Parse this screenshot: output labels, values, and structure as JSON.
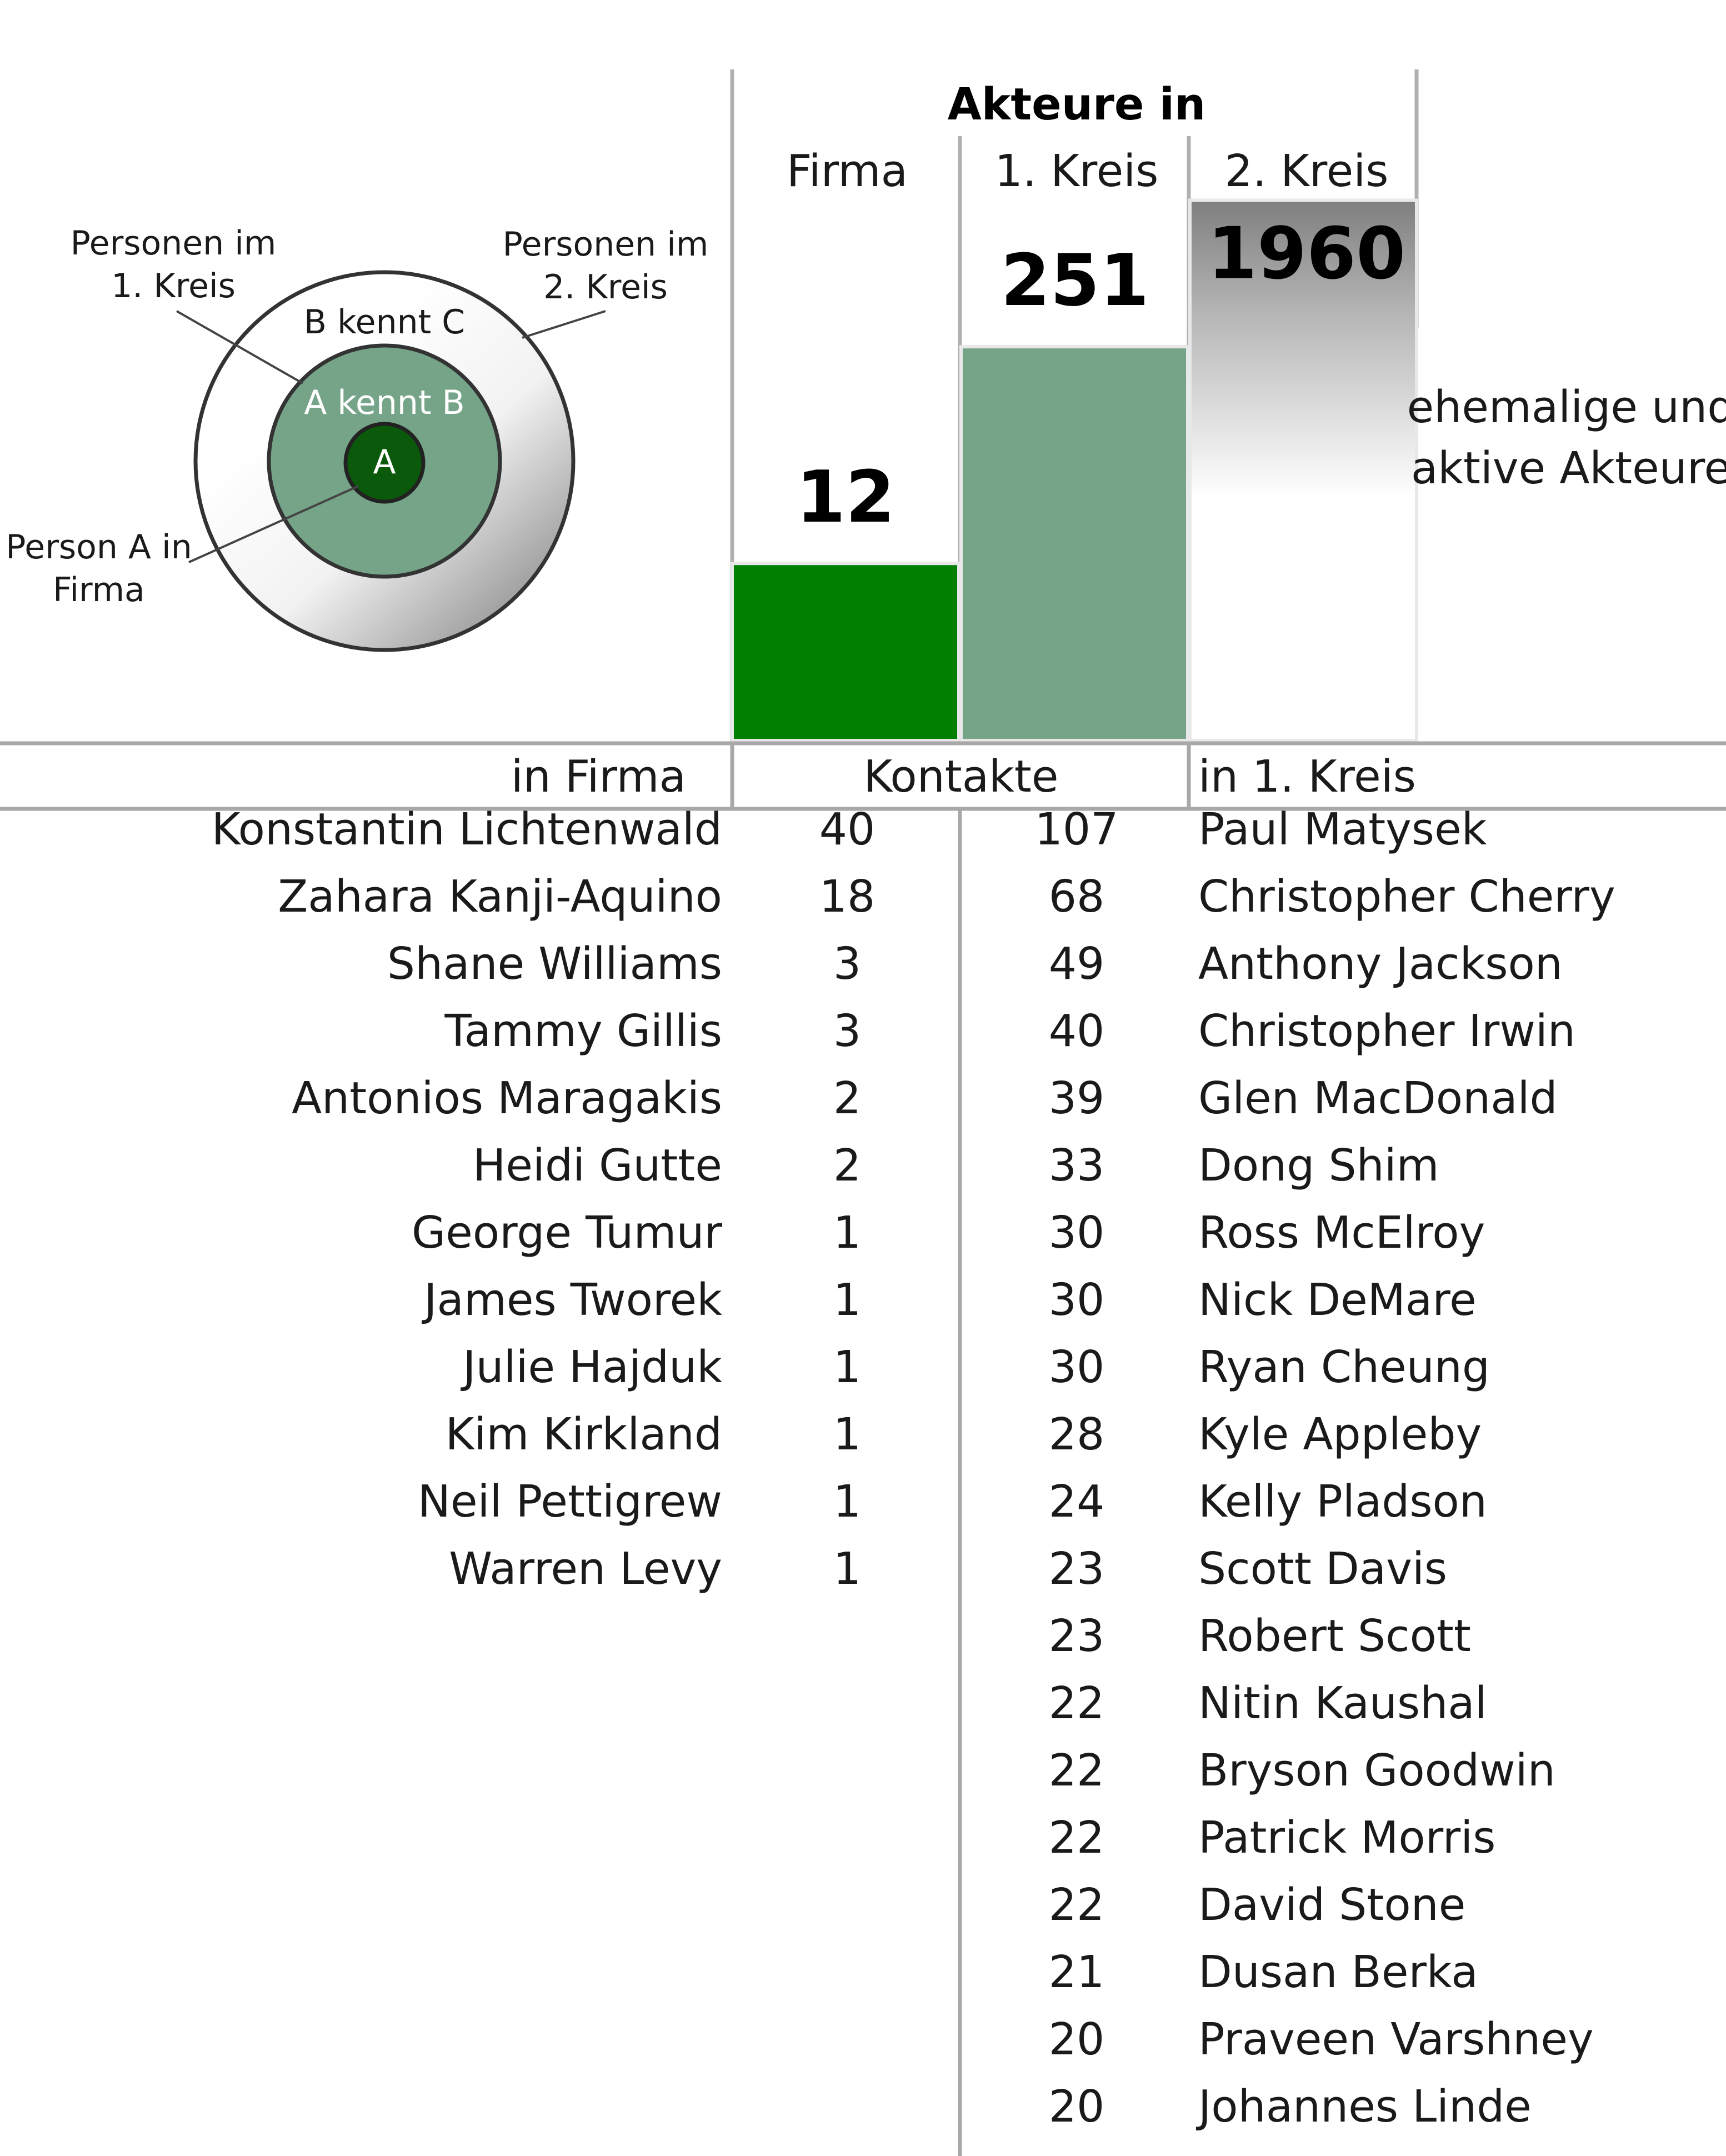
{
  "diagram": {
    "label_first_circle": [
      "Personen im",
      "1. Kreis"
    ],
    "label_second_circle": [
      "Personen im",
      "2. Kreis"
    ],
    "outer_ring_text": "B kennt C",
    "middle_ring_text": "A kennt B",
    "center_text": "A",
    "label_person": [
      "Person A in",
      "Firma"
    ]
  },
  "chart_data": {
    "type": "bar",
    "title": "Akteure in",
    "categories": [
      "Firma",
      "1. Kreis",
      "2. Kreis"
    ],
    "values": [
      12,
      251,
      1960
    ],
    "value_labels": [
      "12",
      "251",
      "1960"
    ],
    "scale": "log",
    "side_note": [
      "ehemalige und",
      "aktive Akteure"
    ],
    "colors": [
      "#008000",
      "#76a488",
      "#7f7f7f"
    ]
  },
  "table": {
    "headers": [
      "in Firma",
      "Kontakte",
      "in 1. Kreis"
    ],
    "firm_rows": [
      {
        "name": "Konstantin Lichtenwald",
        "count": "40"
      },
      {
        "name": "Zahara Kanji-Aquino",
        "count": "18"
      },
      {
        "name": "Shane Williams",
        "count": "3"
      },
      {
        "name": "Tammy Gillis",
        "count": "3"
      },
      {
        "name": "Antonios Maragakis",
        "count": "2"
      },
      {
        "name": "Heidi Gutte",
        "count": "2"
      },
      {
        "name": "George Tumur",
        "count": "1"
      },
      {
        "name": "James Tworek",
        "count": "1"
      },
      {
        "name": "Julie Hajduk",
        "count": "1"
      },
      {
        "name": "Kim Kirkland",
        "count": "1"
      },
      {
        "name": "Neil Pettigrew",
        "count": "1"
      },
      {
        "name": "Warren Levy",
        "count": "1"
      }
    ],
    "circle_rows": [
      {
        "count": "107",
        "name": "Paul Matysek"
      },
      {
        "count": "68",
        "name": "Christopher Cherry"
      },
      {
        "count": "49",
        "name": "Anthony Jackson"
      },
      {
        "count": "40",
        "name": "Christopher Irwin"
      },
      {
        "count": "39",
        "name": "Glen MacDonald"
      },
      {
        "count": "33",
        "name": "Dong Shim"
      },
      {
        "count": "30",
        "name": "Ross McElroy"
      },
      {
        "count": "30",
        "name": "Nick DeMare"
      },
      {
        "count": "30",
        "name": "Ryan Cheung"
      },
      {
        "count": "28",
        "name": "Kyle Appleby"
      },
      {
        "count": "24",
        "name": "Kelly Pladson"
      },
      {
        "count": "23",
        "name": "Scott Davis"
      },
      {
        "count": "23",
        "name": "Robert Scott"
      },
      {
        "count": "22",
        "name": "Nitin Kaushal"
      },
      {
        "count": "22",
        "name": "Bryson Goodwin"
      },
      {
        "count": "22",
        "name": "Patrick Morris"
      },
      {
        "count": "22",
        "name": "David Stone"
      },
      {
        "count": "21",
        "name": "Dusan Berka"
      },
      {
        "count": "20",
        "name": "Praveen Varshney"
      },
      {
        "count": "20",
        "name": "Johannes Linde"
      }
    ]
  }
}
